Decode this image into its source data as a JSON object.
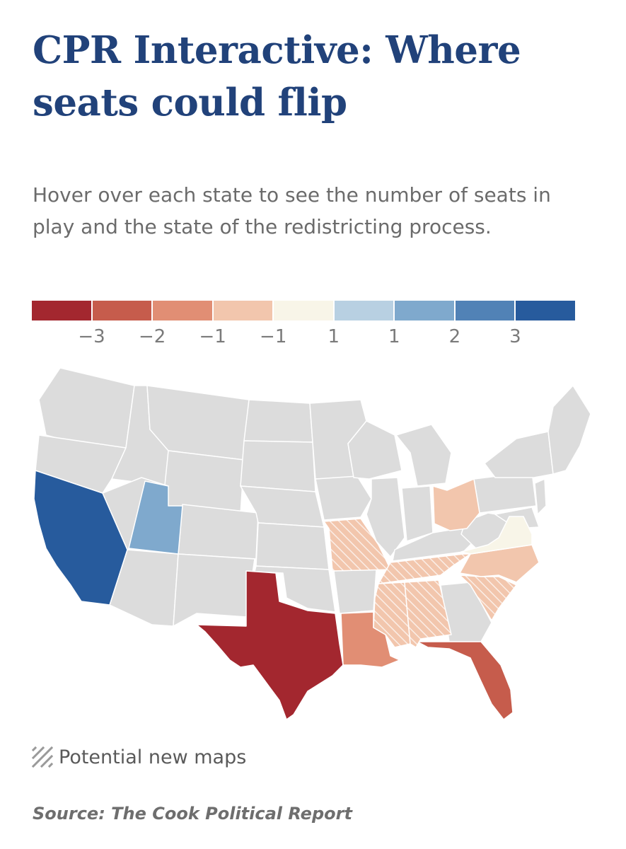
{
  "title": "CPR Interactive: Where seats could flip",
  "subtitle": "Hover over each state to see the number of seats in play and the state of the redistricting process.",
  "color_scale": {
    "swatches": [
      "#a3272f",
      "#c65c4c",
      "#e18e74",
      "#f2c6ad",
      "#f8f5e8",
      "#b8d0e2",
      "#7fa9cd",
      "#5182b6",
      "#275b9d"
    ],
    "labels": [
      "−3",
      "−2",
      "−1",
      "−1",
      "1",
      "1",
      "2",
      "3"
    ]
  },
  "map": {
    "base_color": "#dcdcdc",
    "border_color": "#ffffff",
    "hatch_color": "#ffffff",
    "states": [
      {
        "name": "California",
        "color": "#275b9d",
        "hatched": false
      },
      {
        "name": "Utah",
        "color": "#7fa9cd",
        "hatched": false
      },
      {
        "name": "Texas",
        "color": "#a3272f",
        "hatched": false
      },
      {
        "name": "Florida",
        "color": "#c65c4c",
        "hatched": false
      },
      {
        "name": "Louisiana",
        "color": "#e18e74",
        "hatched": false
      },
      {
        "name": "Ohio",
        "color": "#f2c6ad",
        "hatched": false
      },
      {
        "name": "North Carolina",
        "color": "#f2c6ad",
        "hatched": false
      },
      {
        "name": "Missouri",
        "color": "#f2c6ad",
        "hatched": true
      },
      {
        "name": "Tennessee",
        "color": "#f2c6ad",
        "hatched": true
      },
      {
        "name": "Mississippi",
        "color": "#f2c6ad",
        "hatched": true
      },
      {
        "name": "Alabama",
        "color": "#f2c6ad",
        "hatched": true
      },
      {
        "name": "South Carolina",
        "color": "#f2c6ad",
        "hatched": true
      },
      {
        "name": "Virginia",
        "color": "#f8f5e8",
        "hatched": false
      }
    ]
  },
  "legend": {
    "label": "Potential new maps"
  },
  "source": "Source: The Cook Political Report"
}
